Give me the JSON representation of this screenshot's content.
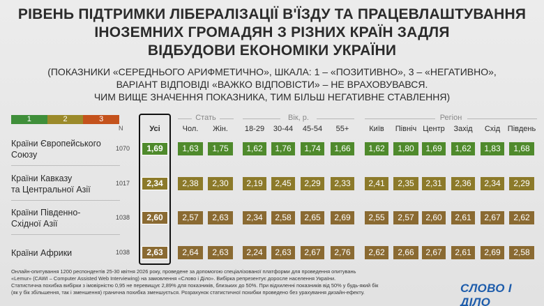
{
  "title": {
    "line1": "РІВЕНЬ ПІДТРИМКИ ЛІБЕРАЛІЗАЦІЇ В'ЇЗДУ ТА ПРАЦЕВЛАШТУВАННЯ",
    "line2": "ІНОЗЕМНИХ ГРОМАДЯН З РІЗНИХ КРАЇН ЗАДЛЯ",
    "line3": "ВІДБУДОВИ ЕКОНОМІКИ УКРАЇНИ"
  },
  "subtitle": {
    "line1": "(ПОКАЗНИКИ «СЕРЕДНЬОГО АРИФМЕТИЧНО», ШКАЛА: 1 – «ПОЗИТИВНО», 3 – «НЕГАТИВНО»,",
    "line2": "ВАРІАНТ ВІДПОВІДІ «ВАЖКО ВІДПОВІСТИ» – НЕ ВРАХОВУВАВСЯ.",
    "line3": "ЧИМ ВИЩЕ ЗНАЧЕННЯ ПОКАЗНИКА, ТИМ БІЛЬШ НЕГАТИВНЕ СТАВЛЕННЯ)"
  },
  "scale": {
    "labels": [
      "1",
      "2",
      "3"
    ],
    "colors": [
      "#3f8f3a",
      "#9b8a2a",
      "#c4521c"
    ],
    "n_label": "N"
  },
  "groups": {
    "sex": "Стать",
    "age": "Вік, р.",
    "region": "Регіон"
  },
  "chart_data": {
    "type": "table",
    "columns": [
      "Усі",
      "Чол.",
      "Жін.",
      "18-29",
      "30-44",
      "45-54",
      "55+",
      "Київ",
      "Півнiч",
      "Центр",
      "Захід",
      "Схід",
      "Південь"
    ],
    "rows": [
      {
        "label": "Країни Європейського Союзу",
        "label_lines": [
          "Країни Європейського",
          "Союзу"
        ],
        "n": "1070",
        "values": [
          "1,69",
          "1,63",
          "1,75",
          "1,62",
          "1,76",
          "1,74",
          "1,66",
          "1,62",
          "1,80",
          "1,69",
          "1,62",
          "1,83",
          "1,68"
        ],
        "color": "#4f8a2c"
      },
      {
        "label": "Країни Кавказу та Центральної Азії",
        "label_lines": [
          "Країни Кавказу",
          "та Центральної Азії"
        ],
        "n": "1017",
        "values": [
          "2,34",
          "2,38",
          "2,30",
          "2,19",
          "2,45",
          "2,29",
          "2,33",
          "2,41",
          "2,35",
          "2,31",
          "2,36",
          "2,34",
          "2,29"
        ],
        "color": "#8c7a2a"
      },
      {
        "label": "Країни Південно-Східної Азії",
        "label_lines": [
          "Країни Південно-",
          "Східної Азії"
        ],
        "n": "1038",
        "values": [
          "2,60",
          "2,57",
          "2,63",
          "2,34",
          "2,58",
          "2,65",
          "2,69",
          "2,55",
          "2,57",
          "2,60",
          "2,61",
          "2,67",
          "2,62"
        ],
        "color": "#8a6a32"
      },
      {
        "label": "Країни Африки",
        "label_lines": [
          "Країни Африки",
          ""
        ],
        "n": "1038",
        "values": [
          "2,63",
          "2,64",
          "2,63",
          "2,24",
          "2,63",
          "2,67",
          "2,76",
          "2,62",
          "2,66",
          "2,67",
          "2,61",
          "2,69",
          "2,58"
        ],
        "color": "#8a6a32"
      }
    ]
  },
  "footer": {
    "line1": "Онлайн-опитування 1200 респондентів 25-30 квітня 2026 року, проведене за допомогою спеціалізованої платформи для проведення опитувань",
    "line2": "«Lemur» (CAWI – Computer Assisted Web Interviewing) на замовлення «Слово і Діло». Вибірка репрезентує доросле населення України.",
    "line3": "Статистична похибка вибірки з імовірністю 0,95 не перевищує 2,89% для показників, близьких до 50%. При відхиленні показників від 50% у будь-який бік",
    "line4": "(як у бік збільшення, так і зменшення) гранична похибка зменшується. Розрахунок статистичної похибки проведено без урахування дизайн-ефекту."
  },
  "logo": {
    "text": "СЛОВО І ДІЛО"
  }
}
